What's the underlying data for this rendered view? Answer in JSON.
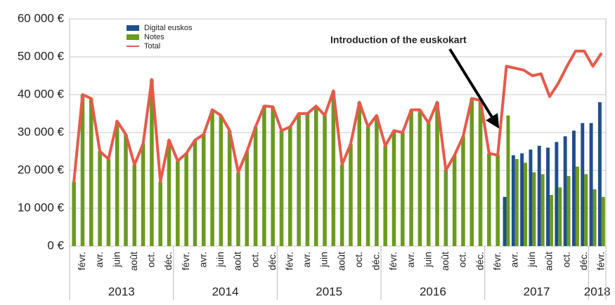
{
  "chart_data": {
    "type": "bar",
    "categories": [
      null,
      "févr.",
      null,
      "avr.",
      null,
      "juin",
      null,
      "août",
      null,
      "oct.",
      null,
      "déc.",
      null,
      "févr.",
      null,
      "avr.",
      null,
      "juin",
      null,
      "août",
      null,
      "oct.",
      null,
      "déc.",
      null,
      "févr.",
      null,
      "avr.",
      null,
      "juin",
      null,
      "août",
      null,
      "oct.",
      null,
      "déc.",
      null,
      "févr.",
      null,
      "avr.",
      null,
      "juin",
      null,
      "août",
      null,
      "oct.",
      null,
      "déc.",
      null,
      "févr.",
      null,
      "avr.",
      null,
      "juin",
      null,
      "août",
      null,
      "oct.",
      null,
      "déc.",
      null,
      "févr."
    ],
    "years": [
      "2013",
      "2014",
      "2015",
      "2016",
      "2017",
      "2018"
    ],
    "series": [
      {
        "name": "Digital euskos",
        "color": "#1f4e8c",
        "values": [
          null,
          null,
          null,
          null,
          null,
          null,
          null,
          null,
          null,
          null,
          null,
          null,
          null,
          null,
          null,
          null,
          null,
          null,
          null,
          null,
          null,
          null,
          null,
          null,
          null,
          null,
          null,
          null,
          null,
          null,
          null,
          null,
          null,
          null,
          null,
          null,
          null,
          null,
          null,
          null,
          null,
          null,
          null,
          null,
          null,
          null,
          null,
          null,
          null,
          null,
          13000,
          24000,
          24500,
          25500,
          26500,
          26000,
          27500,
          29000,
          30500,
          32500,
          32500,
          38000
        ]
      },
      {
        "name": "Notes",
        "color": "#6a9a1f",
        "values": [
          17000,
          40000,
          39000,
          25000,
          23000,
          33000,
          29500,
          21500,
          27000,
          44000,
          17000,
          28000,
          22500,
          24500,
          28000,
          29500,
          36000,
          34500,
          30500,
          19500,
          25000,
          31500,
          37000,
          36800,
          30500,
          31500,
          35000,
          35000,
          37000,
          34500,
          41000,
          21500,
          27000,
          38000,
          31500,
          34500,
          26500,
          30500,
          30000,
          36000,
          36000,
          32500,
          38000,
          20000,
          24000,
          29000,
          39000,
          38500,
          24500,
          24000,
          34500,
          23000,
          22000,
          19500,
          19000,
          13500,
          15500,
          18500,
          21000,
          19000,
          15000,
          13000
        ]
      },
      {
        "name": "Total",
        "color": "#e8594a",
        "type": "line",
        "values": [
          17000,
          40000,
          39000,
          25000,
          23000,
          33000,
          29500,
          21500,
          27000,
          44000,
          17000,
          28000,
          22500,
          24500,
          28000,
          29500,
          36000,
          34500,
          30500,
          19500,
          25000,
          31500,
          37000,
          36800,
          30500,
          31500,
          35000,
          35000,
          37000,
          34500,
          41000,
          21500,
          27000,
          38000,
          31500,
          34500,
          26500,
          30500,
          30000,
          36000,
          36000,
          32500,
          38000,
          20000,
          24000,
          29000,
          39000,
          38500,
          24500,
          24000,
          47500,
          47000,
          46500,
          45000,
          45500,
          39500,
          43000,
          47500,
          51500,
          51500,
          47500,
          51000
        ]
      }
    ],
    "annotation": "Introduction of the euskokart",
    "ylim": [
      0,
      60000
    ],
    "yticks": [
      {
        "value": 0,
        "label": "0 €"
      },
      {
        "value": 10000,
        "label": "10 000 €"
      },
      {
        "value": 20000,
        "label": "20 000 €"
      },
      {
        "value": 30000,
        "label": "30 000 €"
      },
      {
        "value": 40000,
        "label": "40 000 €"
      },
      {
        "value": 50000,
        "label": "50 000 €"
      },
      {
        "value": 60000,
        "label": "60 000 €"
      }
    ],
    "grid": true,
    "legend": "top-left"
  }
}
